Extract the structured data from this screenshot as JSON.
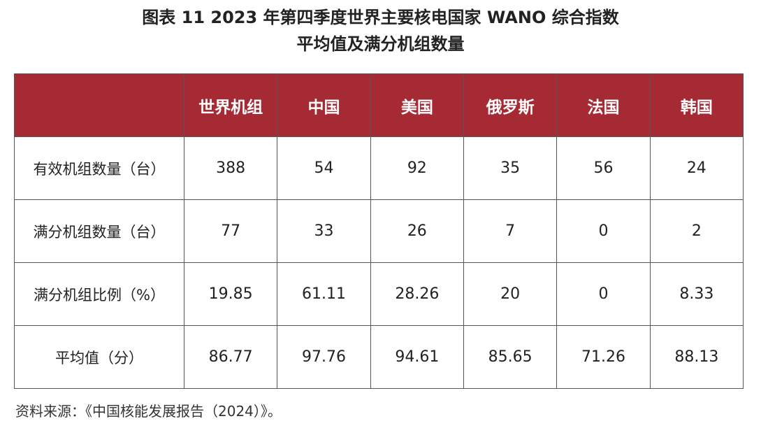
{
  "title": {
    "line1": "图表 11  2023 年第四季度世界主要核电国家 WANO 综合指数",
    "line2": "平均值及满分机组数量"
  },
  "table": {
    "columns": [
      "",
      "世界机组",
      "中国",
      "美国",
      "俄罗斯",
      "法国",
      "韩国"
    ],
    "rows": [
      {
        "label": "有效机组数量（台）",
        "values": [
          "388",
          "54",
          "92",
          "35",
          "56",
          "24"
        ]
      },
      {
        "label": "满分机组数量（台）",
        "values": [
          "77",
          "33",
          "26",
          "7",
          "0",
          "2"
        ]
      },
      {
        "label": "满分机组比例（%）",
        "values": [
          "19.85",
          "61.11",
          "28.26",
          "20",
          "0",
          "8.33"
        ]
      },
      {
        "label": "平均值（分）",
        "values": [
          "86.77",
          "97.76",
          "94.61",
          "85.65",
          "71.26",
          "88.13"
        ]
      }
    ]
  },
  "source": "资料来源：《中国核能发展报告（2024）》。",
  "colors": {
    "header_bg": "#a52a33",
    "header_text": "#ffffff",
    "border": "#555555"
  }
}
